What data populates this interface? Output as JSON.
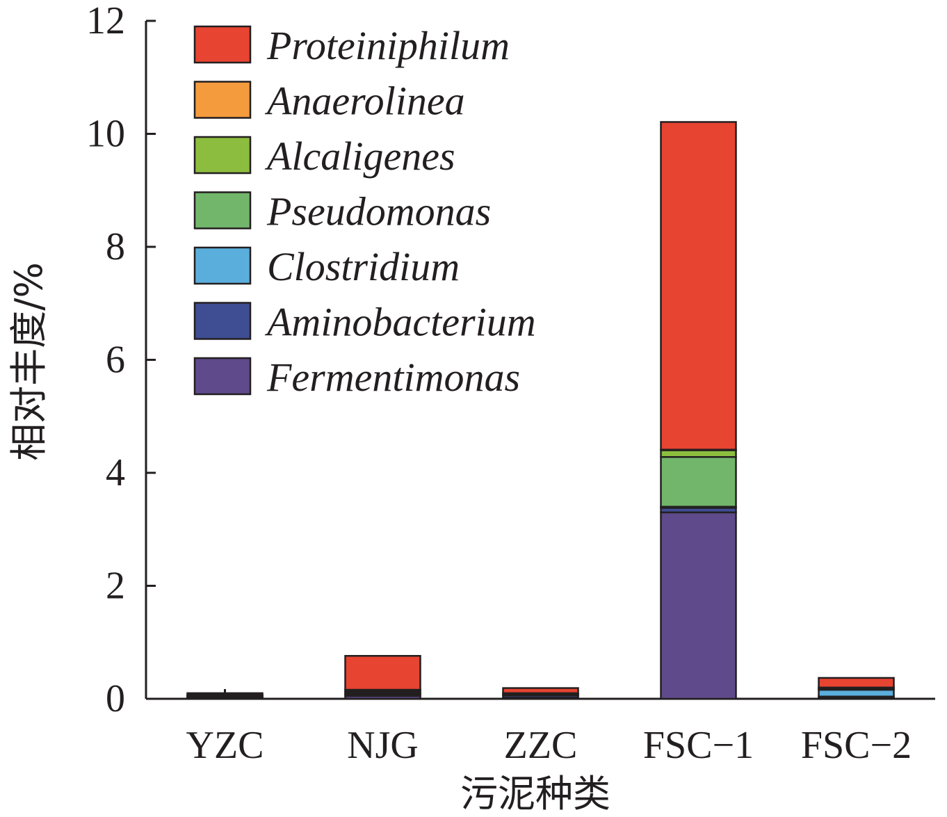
{
  "chart_data": {
    "type": "bar",
    "stacked": true,
    "xlabel": "污泥种类",
    "ylabel": "相对丰度/%",
    "ylim": [
      0,
      12
    ],
    "yticks": [
      "0",
      "2",
      "4",
      "6",
      "8",
      "10",
      "12"
    ],
    "categories": [
      "YZC",
      "NJG",
      "ZZC",
      "FSC−1",
      "FSC−2"
    ],
    "legend_position": "top-left",
    "series": [
      {
        "name": "Fermentimonas",
        "color": "#5f4a8b",
        "values": [
          0.02,
          0.05,
          0.02,
          3.3,
          0.02
        ]
      },
      {
        "name": "Aminobacterium",
        "color": "#3f4e93",
        "values": [
          0.01,
          0.03,
          0.04,
          0.08,
          0.02
        ]
      },
      {
        "name": "Clostridium",
        "color": "#5aaedc",
        "values": [
          0.01,
          0.01,
          0.01,
          0.02,
          0.12
        ]
      },
      {
        "name": "Pseudomonas",
        "color": "#72b66b",
        "values": [
          0.01,
          0.03,
          0.01,
          0.88,
          0.02
        ]
      },
      {
        "name": "Alcaligenes",
        "color": "#8cbd3f",
        "values": [
          0.01,
          0.03,
          0.01,
          0.12,
          0.01
        ]
      },
      {
        "name": "Anaerolinea",
        "color": "#f49b3e",
        "values": [
          0.01,
          0.01,
          0.01,
          0.01,
          0.01
        ]
      },
      {
        "name": "Proteiniphilum",
        "color": "#e74432",
        "values": [
          0.03,
          0.6,
          0.09,
          5.8,
          0.17
        ]
      }
    ]
  }
}
